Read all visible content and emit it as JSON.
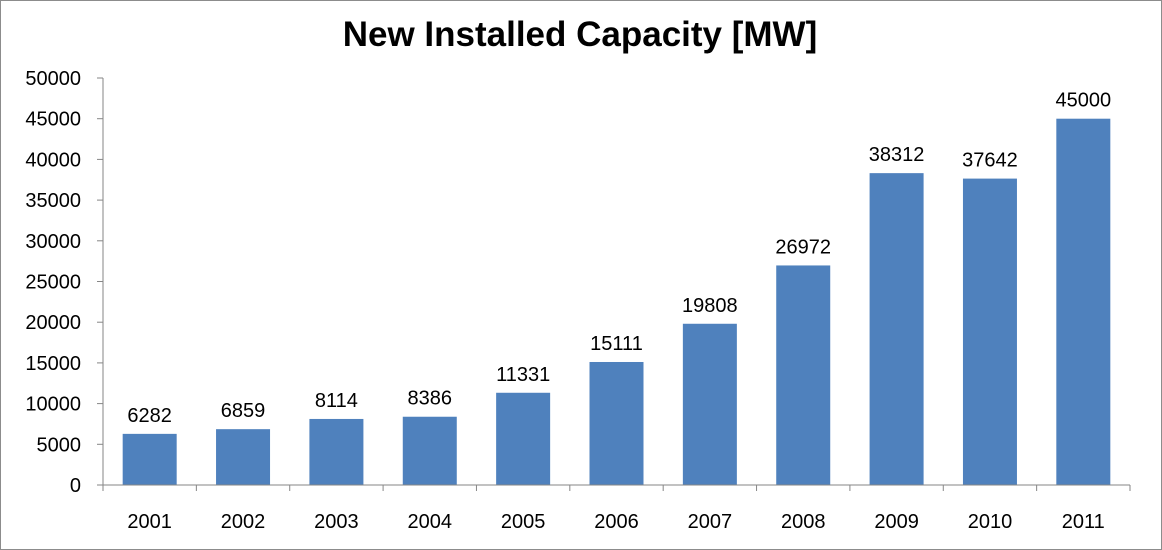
{
  "chart_data": {
    "type": "bar",
    "title": "New Installed Capacity [MW]",
    "xlabel": "",
    "ylabel": "",
    "categories": [
      "2001",
      "2002",
      "2003",
      "2004",
      "2005",
      "2006",
      "2007",
      "2008",
      "2009",
      "2010",
      "2011"
    ],
    "values": [
      6282,
      6859,
      8114,
      8386,
      11331,
      15111,
      19808,
      26972,
      38312,
      37642,
      45000
    ],
    "ylim": [
      0,
      50000
    ],
    "yticks": [
      0,
      5000,
      10000,
      15000,
      20000,
      25000,
      30000,
      35000,
      40000,
      45000,
      50000
    ],
    "grid": false,
    "legend": "none",
    "bar_color": "#4f81bd",
    "axis_color": "#868686"
  }
}
